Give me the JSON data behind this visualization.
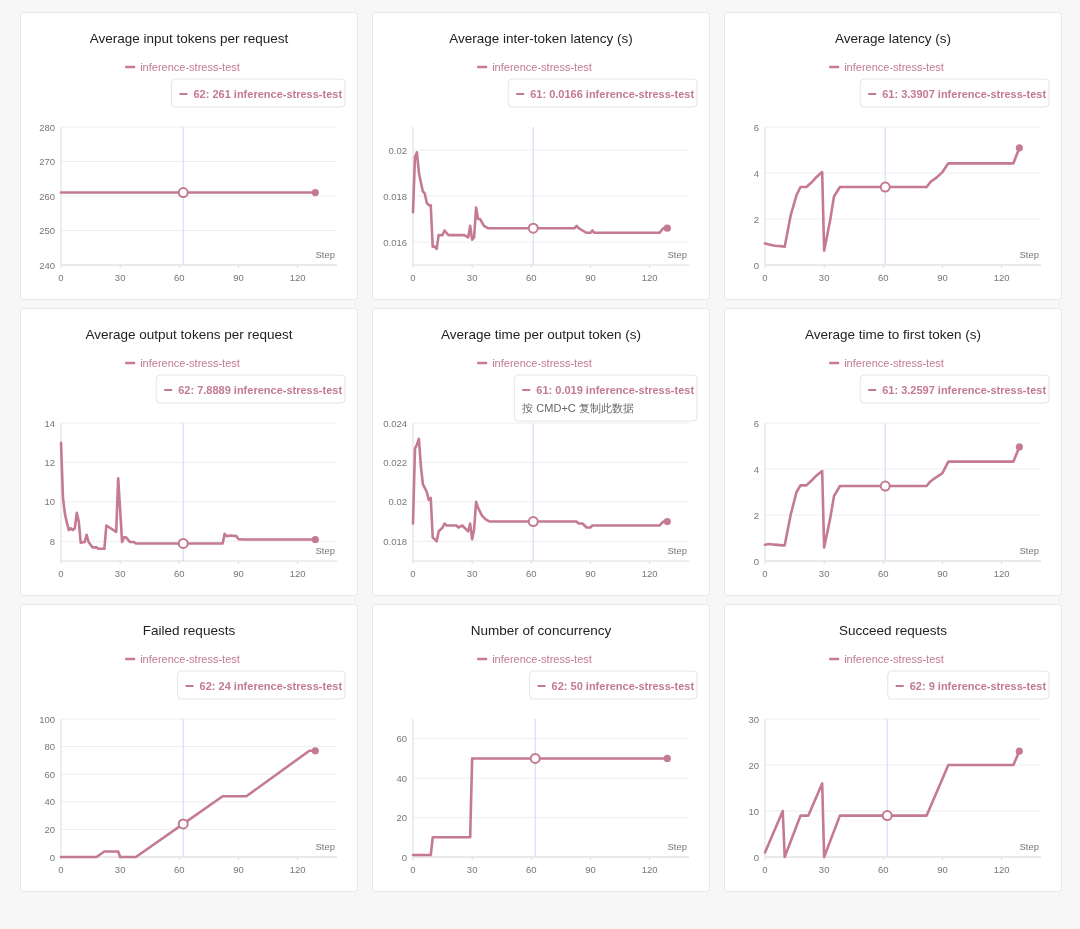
{
  "chart_data": [
    {
      "type": "line",
      "title": "Average input tokens per request",
      "xlabel": "Step",
      "legend": "top",
      "grid": "y",
      "xlim": [
        0,
        140
      ],
      "xticks": [
        0,
        30,
        60,
        90,
        120
      ],
      "ylim": [
        240,
        280
      ],
      "yticks": [
        240,
        250,
        260,
        270,
        280
      ],
      "x": [
        0,
        62,
        129
      ],
      "series": [
        {
          "name": "inference-stress-test",
          "color": "#c47a92",
          "values": [
            261,
            261,
            261
          ]
        }
      ],
      "ref_lines": [
        {
          "axis": "x",
          "value": 62,
          "color": "#d3e3f7"
        }
      ],
      "annotations": [
        "62:  261  inference-stress-test"
      ]
    },
    {
      "type": "line",
      "title": "Average inter-token latency (s)",
      "xlabel": "Step",
      "legend": "top",
      "grid": "y",
      "xlim": [
        0,
        140
      ],
      "xticks": [
        0,
        30,
        60,
        90,
        120
      ],
      "ylim": [
        0.015,
        0.021
      ],
      "yticks": [
        0.016,
        0.018,
        0.02
      ],
      "x": [
        0,
        1,
        2,
        3,
        5,
        6,
        7,
        8,
        9,
        10,
        11,
        12,
        13,
        15,
        16,
        18,
        26,
        28,
        29,
        30,
        31,
        32,
        33,
        34,
        36,
        38,
        61,
        82,
        83,
        84,
        86,
        88,
        90,
        91,
        92,
        125,
        127,
        129
      ],
      "series": [
        {
          "name": "inference-stress-test",
          "color": "#c47a92",
          "values": [
            0.0173,
            0.0197,
            0.0199,
            0.019,
            0.0182,
            0.0181,
            0.0177,
            0.0176,
            0.0176,
            0.0158,
            0.0158,
            0.0157,
            0.0163,
            0.0163,
            0.0165,
            0.0163,
            0.0163,
            0.0162,
            0.0167,
            0.0161,
            0.0162,
            0.0175,
            0.017,
            0.017,
            0.0167,
            0.0166,
            0.0166,
            0.0166,
            0.0167,
            0.0166,
            0.0165,
            0.0164,
            0.0164,
            0.0165,
            0.0164,
            0.0164,
            0.0166,
            0.0166
          ]
        }
      ],
      "ref_lines": [
        {
          "axis": "x",
          "value": 61,
          "color": "#d3e3f7"
        }
      ],
      "annotations": [
        "61:  0.0166  inference-stress-test"
      ]
    },
    {
      "type": "line",
      "title": "Average latency (s)",
      "xlabel": "Step",
      "legend": "top",
      "grid": "y",
      "xlim": [
        0,
        140
      ],
      "xticks": [
        0,
        30,
        60,
        90,
        120
      ],
      "ylim": [
        0,
        6
      ],
      "yticks": [
        0,
        2,
        4,
        6
      ],
      "x": [
        0,
        2,
        5,
        8,
        10,
        13,
        16,
        18,
        21,
        24,
        26,
        29,
        30,
        33,
        35,
        38,
        61,
        82,
        84,
        87,
        90,
        93,
        126,
        129
      ],
      "series": [
        {
          "name": "inference-stress-test",
          "color": "#c47a92",
          "values": [
            0.94,
            0.89,
            0.84,
            0.82,
            0.79,
            2.15,
            3.04,
            3.39,
            3.39,
            3.62,
            3.82,
            4.04,
            0.62,
            1.92,
            2.98,
            3.39,
            3.39,
            3.39,
            3.62,
            3.8,
            4.04,
            4.42,
            4.42,
            5.09
          ]
        }
      ],
      "ref_lines": [
        {
          "axis": "x",
          "value": 61,
          "color": "#d3e3f7"
        }
      ],
      "annotations": [
        "61:  3.3907  inference-stress-test"
      ]
    },
    {
      "type": "line",
      "title": "Average output tokens per request",
      "xlabel": "Step",
      "legend": "top",
      "grid": "y",
      "xlim": [
        0,
        140
      ],
      "xticks": [
        0,
        30,
        60,
        90,
        120
      ],
      "ylim": [
        7,
        14
      ],
      "yticks": [
        8,
        10,
        12,
        14
      ],
      "x": [
        0,
        1,
        2,
        3,
        4,
        5,
        6,
        7,
        8,
        9,
        10,
        12,
        13,
        14,
        16,
        18,
        19,
        22,
        23,
        28,
        29,
        31,
        32,
        33,
        35,
        37,
        38,
        62,
        82,
        83,
        84,
        86,
        89,
        90,
        92,
        129
      ],
      "series": [
        {
          "name": "inference-stress-test",
          "color": "#c47a92",
          "values": [
            13,
            10.2,
            9.39,
            8.93,
            8.57,
            8.66,
            8.57,
            8.66,
            9.44,
            9.02,
            7.93,
            7.96,
            8.33,
            7.96,
            7.69,
            7.69,
            7.62,
            7.62,
            8.8,
            8.48,
            11.2,
            7.96,
            8.2,
            8.2,
            7.96,
            7.96,
            7.89,
            7.89,
            7.89,
            8.38,
            8.26,
            8.29,
            8.26,
            8.11,
            8.09,
            8.09
          ]
        }
      ],
      "ref_lines": [
        {
          "axis": "x",
          "value": 62,
          "color": "#d3e3f7"
        }
      ],
      "annotations": [
        "62:  7.8889  inference-stress-test"
      ]
    },
    {
      "type": "line",
      "title": "Average time per output token (s)",
      "xlabel": "Step",
      "legend": "top",
      "grid": "y",
      "xlim": [
        0,
        140
      ],
      "xticks": [
        0,
        30,
        60,
        90,
        120
      ],
      "ylim": [
        0.017,
        0.024
      ],
      "yticks": [
        0.018,
        0.02,
        0.022,
        0.024
      ],
      "x": [
        0,
        1,
        2,
        3,
        4,
        5,
        7,
        8,
        9,
        10,
        11,
        12,
        13,
        15,
        16,
        17,
        22,
        23,
        25,
        26,
        28,
        29,
        30,
        31,
        32,
        33,
        35,
        37,
        39,
        61,
        83,
        84,
        86,
        88,
        90,
        91,
        125,
        127,
        129
      ],
      "series": [
        {
          "name": "inference-stress-test",
          "color": "#c47a92",
          "values": [
            0.0189,
            0.0227,
            0.0229,
            0.0232,
            0.0218,
            0.0209,
            0.0205,
            0.0201,
            0.0202,
            0.0182,
            0.0181,
            0.018,
            0.0185,
            0.0187,
            0.0189,
            0.0188,
            0.0188,
            0.0187,
            0.0188,
            0.0187,
            0.0185,
            0.0189,
            0.0181,
            0.0186,
            0.02,
            0.0197,
            0.0193,
            0.0191,
            0.019,
            0.019,
            0.019,
            0.0189,
            0.0189,
            0.0187,
            0.0187,
            0.0188,
            0.0188,
            0.019,
            0.019
          ]
        }
      ],
      "ref_lines": [
        {
          "axis": "x",
          "value": 61,
          "color": "#d3e3f7"
        }
      ],
      "annotations": [
        "61:  0.019  inference-stress-test",
        "按 CMD+C 复制此数据"
      ]
    },
    {
      "type": "line",
      "title": "Average time to first token (s)",
      "xlabel": "Step",
      "legend": "top",
      "grid": "y",
      "xlim": [
        0,
        140
      ],
      "xticks": [
        0,
        30,
        60,
        90,
        120
      ],
      "ylim": [
        0,
        6
      ],
      "yticks": [
        0,
        2,
        4,
        6
      ],
      "x": [
        0,
        2,
        5,
        9,
        10,
        13,
        16,
        18,
        21,
        24,
        26,
        29,
        30,
        33,
        35,
        38,
        61,
        82,
        84,
        87,
        90,
        93,
        126,
        129
      ],
      "series": [
        {
          "name": "inference-stress-test",
          "color": "#c47a92",
          "values": [
            0.71,
            0.74,
            0.71,
            0.68,
            0.68,
            2,
            3,
            3.29,
            3.29,
            3.53,
            3.71,
            3.91,
            0.59,
            1.82,
            2.82,
            3.26,
            3.26,
            3.26,
            3.47,
            3.65,
            3.82,
            4.32,
            4.32,
            4.96
          ]
        }
      ],
      "ref_lines": [
        {
          "axis": "x",
          "value": 61,
          "color": "#d3e3f7"
        }
      ],
      "annotations": [
        "61:  3.2597  inference-stress-test"
      ]
    },
    {
      "type": "line",
      "title": "Failed requests",
      "xlabel": "Step",
      "legend": "top",
      "grid": "y",
      "xlim": [
        0,
        140
      ],
      "xticks": [
        0,
        30,
        60,
        90,
        120
      ],
      "ylim": [
        0,
        100
      ],
      "yticks": [
        0,
        20,
        40,
        60,
        80,
        100
      ],
      "x": [
        0,
        18,
        22,
        29,
        30,
        38,
        62,
        82,
        94,
        126,
        129
      ],
      "series": [
        {
          "name": "inference-stress-test",
          "color": "#c47a92",
          "values": [
            0,
            0,
            4,
            4,
            0,
            0,
            24,
            44,
            44,
            77,
            77
          ]
        }
      ],
      "ref_lines": [
        {
          "axis": "x",
          "value": 62,
          "color": "#d3e3f7"
        }
      ],
      "annotations": [
        "62:  24  inference-stress-test"
      ]
    },
    {
      "type": "line",
      "title": "Number of concurrency",
      "xlabel": "Step",
      "legend": "top",
      "grid": "y",
      "xlim": [
        0,
        140
      ],
      "xticks": [
        0,
        30,
        60,
        90,
        120
      ],
      "ylim": [
        0,
        70
      ],
      "yticks": [
        0,
        20,
        40,
        60
      ],
      "x": [
        0,
        9,
        10,
        29,
        30,
        62,
        129
      ],
      "series": [
        {
          "name": "inference-stress-test",
          "color": "#c47a92",
          "values": [
            1,
            1,
            10,
            10,
            50,
            50,
            50
          ]
        }
      ],
      "ref_lines": [
        {
          "axis": "x",
          "value": 62,
          "color": "#d3e3f7"
        }
      ],
      "annotations": [
        "62:  50  inference-stress-test"
      ]
    },
    {
      "type": "line",
      "title": "Succeed requests",
      "xlabel": "Step",
      "legend": "top",
      "grid": "y",
      "xlim": [
        0,
        140
      ],
      "xticks": [
        0,
        30,
        60,
        90,
        120
      ],
      "ylim": [
        0,
        30
      ],
      "yticks": [
        0,
        10,
        20,
        30
      ],
      "x": [
        0,
        9,
        10,
        18,
        22,
        29,
        30,
        38,
        62,
        82,
        93,
        126,
        129
      ],
      "series": [
        {
          "name": "inference-stress-test",
          "color": "#c47a92",
          "values": [
            1,
            10,
            0,
            9,
            9,
            16,
            0,
            9,
            9,
            9,
            20,
            20,
            23
          ]
        }
      ],
      "ref_lines": [
        {
          "axis": "x",
          "value": 62,
          "color": "#d3e3f7"
        }
      ],
      "annotations": [
        "62:  9  inference-stress-test"
      ]
    }
  ]
}
